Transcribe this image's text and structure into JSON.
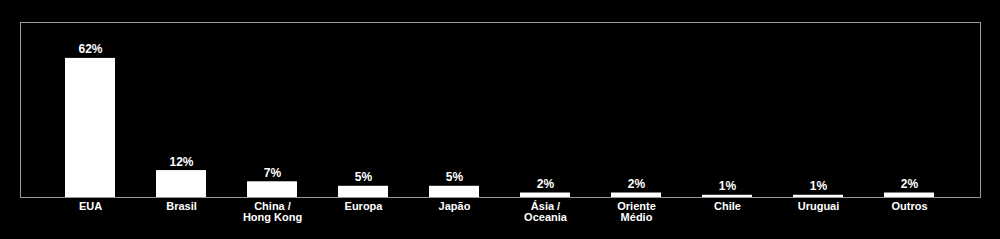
{
  "chart_data": {
    "type": "bar",
    "categories": [
      "EUA",
      "Brasil",
      "China /\nHong Kong",
      "Europa",
      "Japão",
      "Ásia /\nOceania",
      "Oriente\nMédio",
      "Chile",
      "Uruguai",
      "Outros"
    ],
    "values": [
      62,
      12,
      7,
      5,
      5,
      2,
      2,
      1,
      1,
      2
    ],
    "value_labels": [
      "62%",
      "12%",
      "7%",
      "5%",
      "5%",
      "2%",
      "2%",
      "1%",
      "1%",
      "2%"
    ],
    "data_labels": true,
    "color": "#ffffff",
    "ylim": [
      0,
      78
    ],
    "grid": false,
    "tick_labels": "x"
  }
}
